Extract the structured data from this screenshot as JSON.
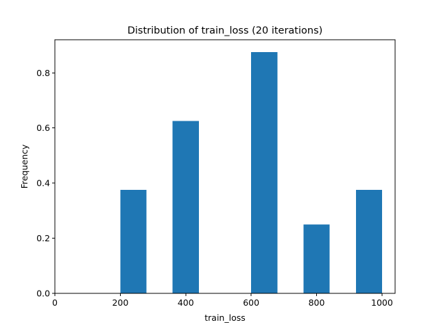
{
  "chart_data": {
    "type": "bar",
    "title": "Distribution of train_loss (20 iterations)",
    "xlabel": "train_loss",
    "ylabel": "Frequency",
    "xlim": [
      0,
      1040
    ],
    "ylim": [
      0,
      0.92
    ],
    "x_ticks": [
      0,
      200,
      400,
      600,
      800,
      1000
    ],
    "y_ticks": [
      0.0,
      0.2,
      0.4,
      0.6,
      0.8
    ],
    "bar_color": "#1f77b4",
    "bars": [
      {
        "x0": 200,
        "x1": 280,
        "value": 0.375
      },
      {
        "x0": 360,
        "x1": 440,
        "value": 0.625
      },
      {
        "x0": 600,
        "x1": 680,
        "value": 0.875
      },
      {
        "x0": 760,
        "x1": 840,
        "value": 0.25
      },
      {
        "x0": 920,
        "x1": 1000,
        "value": 0.375
      }
    ],
    "grid": false
  }
}
